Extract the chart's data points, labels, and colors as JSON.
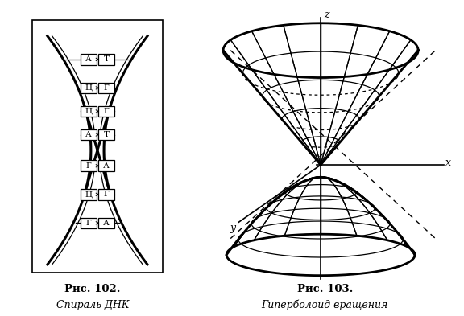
{
  "bg_color": "#ffffff",
  "fig_width": 5.76,
  "fig_height": 3.93,
  "dpi": 100,
  "caption1_bold": "Рис. 102.",
  "caption1_italic": "Спираль ДНК",
  "caption2_bold": "Рис. 103.",
  "caption2_italic": "Гиперболоид вращения",
  "font_size_caption": 9,
  "pairs": [
    [
      "А",
      "Т"
    ],
    [
      "Ц",
      "Г"
    ],
    [
      "Ц",
      "Г"
    ],
    [
      "А",
      "Т"
    ],
    [
      "Г",
      "А"
    ],
    [
      "Ц",
      "Г"
    ],
    [
      "Г",
      "А"
    ]
  ]
}
